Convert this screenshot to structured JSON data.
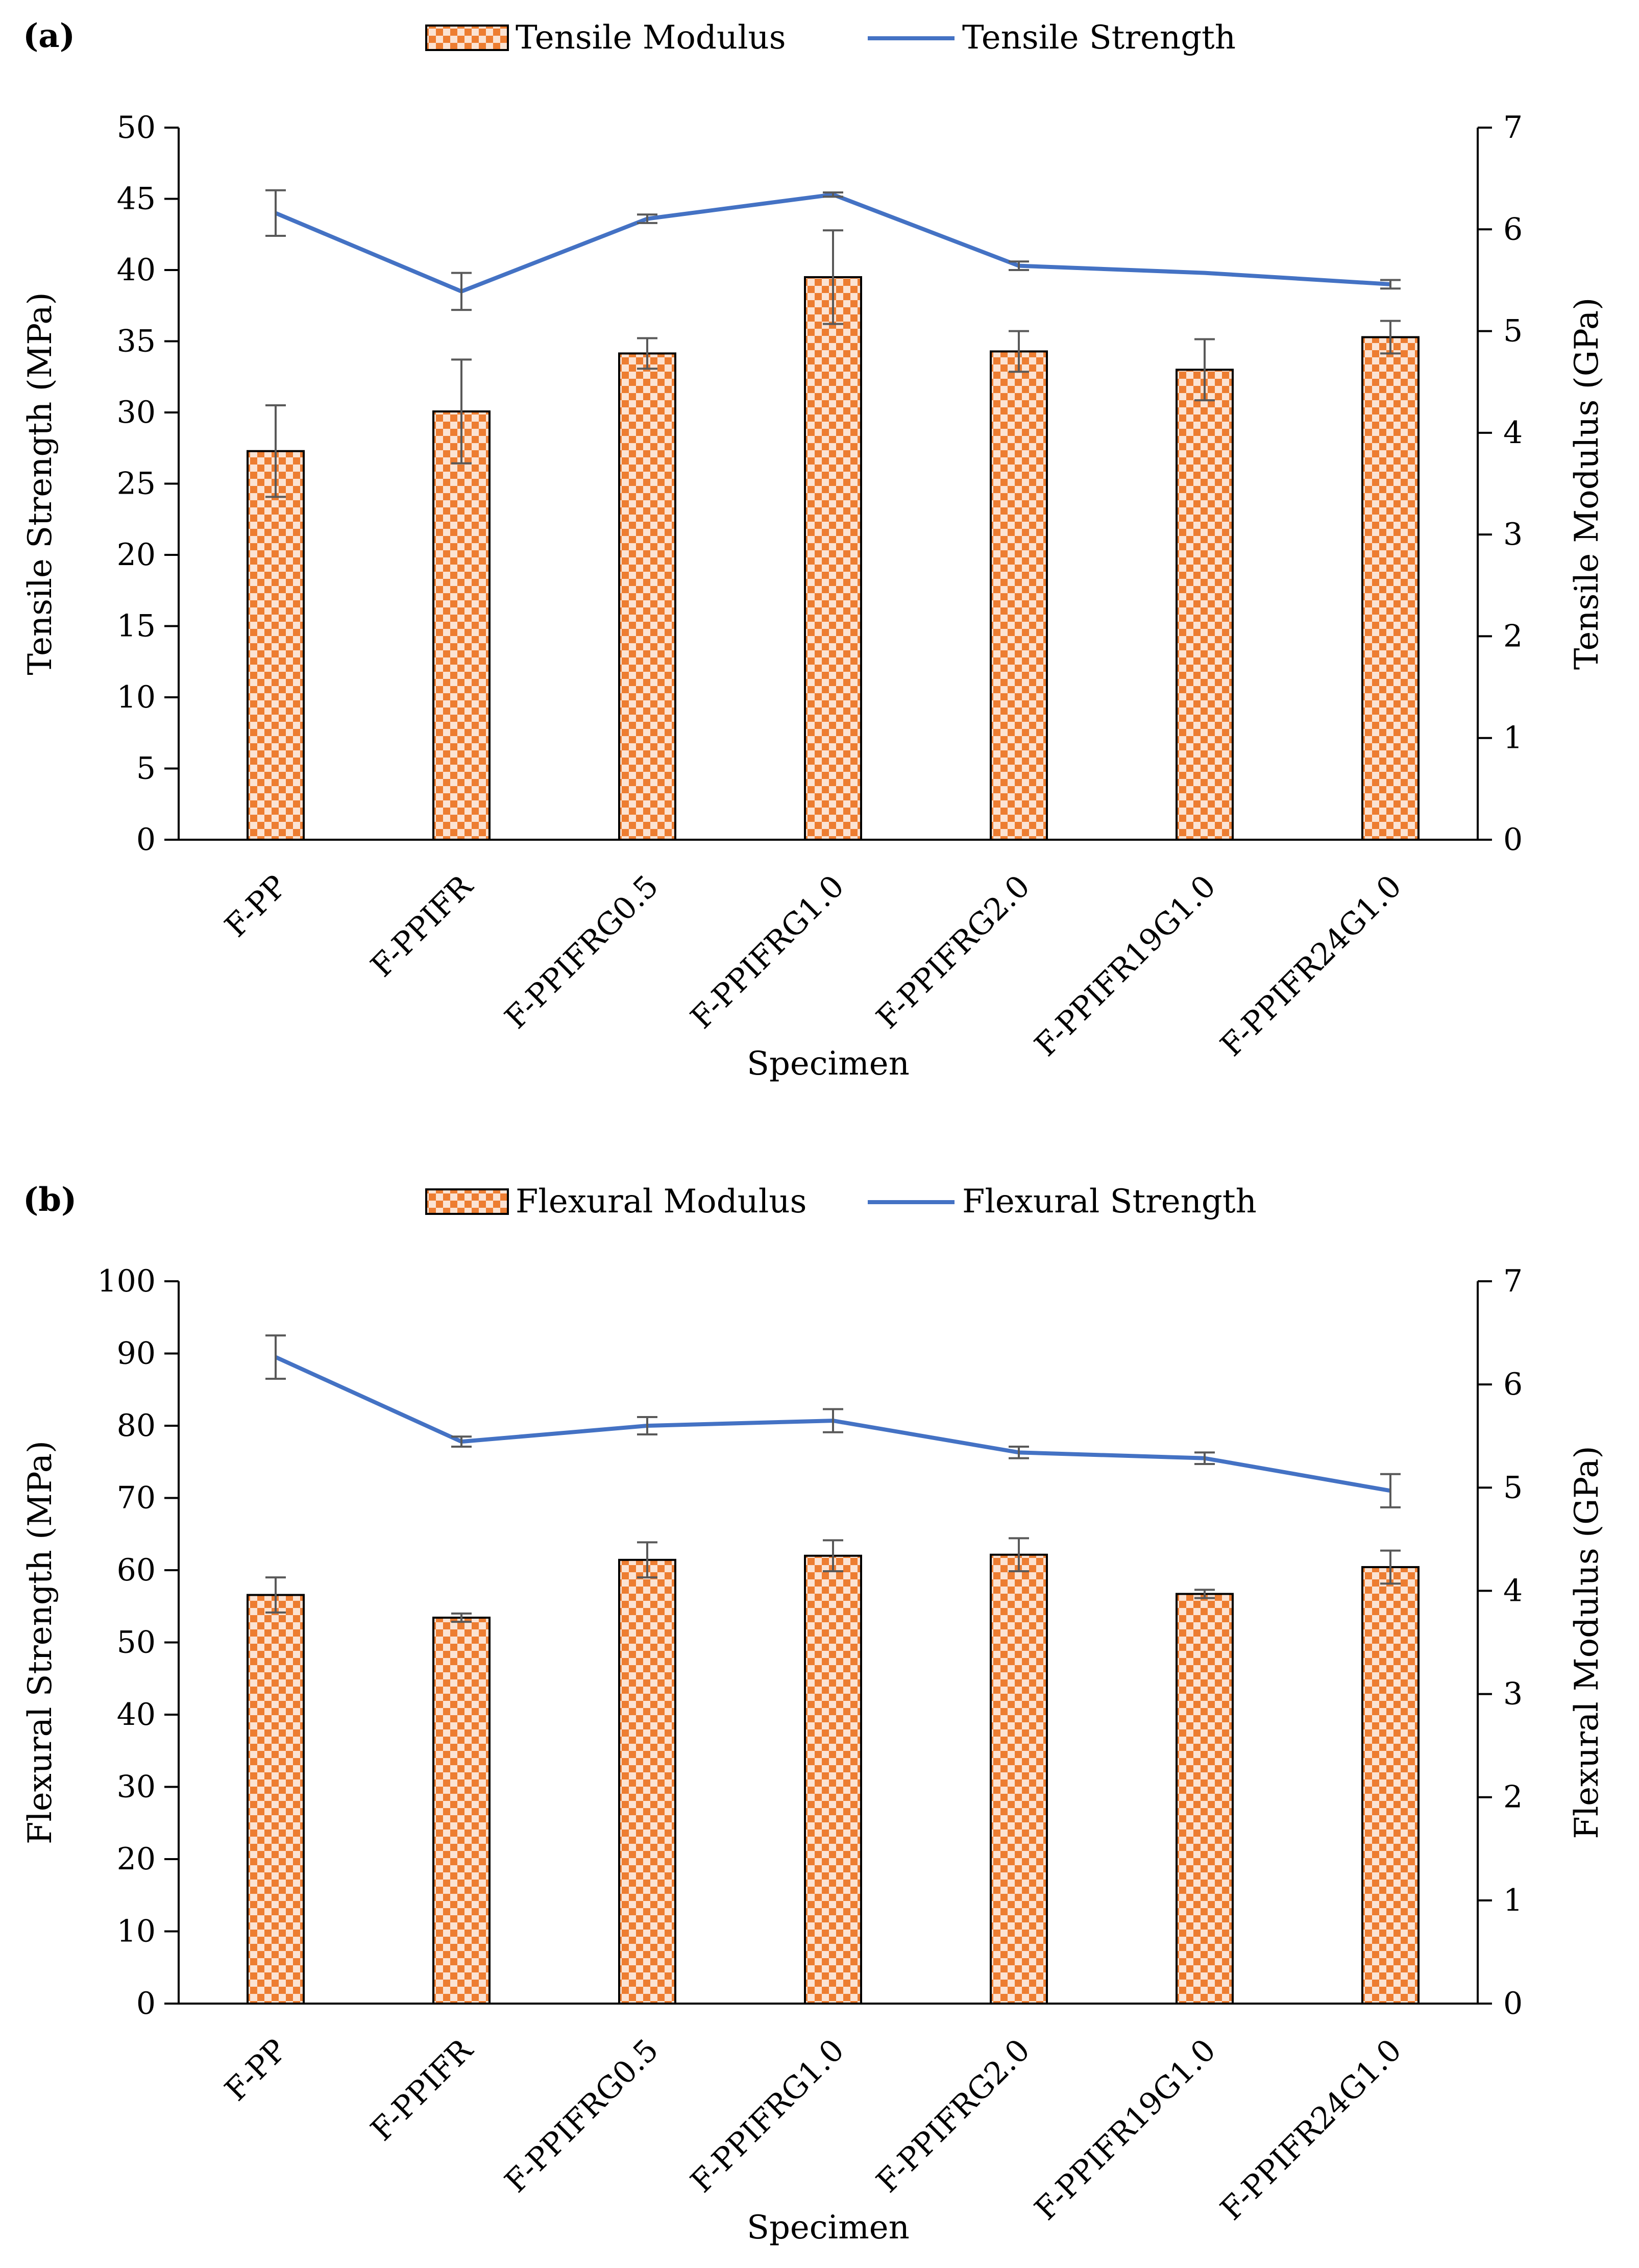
{
  "chart_data": [
    {
      "type": "bar",
      "panel_label": "(a)",
      "categories": [
        "F-PP",
        "F-PPIFR",
        "F-PPIFRG0.5",
        "F-PPIFRG1.0",
        "F-PPIFRG2.0",
        "F-PPIFR19G1.0",
        "F-PPIFR24G1.0"
      ],
      "xlabel": "Specimen",
      "ylabel": "Tensile Strength (MPa)",
      "y2label": "Tensile Modulus (GPa)",
      "ylim": [
        0,
        50
      ],
      "y2lim": [
        0,
        7
      ],
      "yticks": [
        "0",
        "5",
        "10",
        "15",
        "20",
        "25",
        "30",
        "35",
        "40",
        "45",
        "50"
      ],
      "y2ticks": [
        "0",
        "1",
        "2",
        "3",
        "4",
        "5",
        "6",
        "7"
      ],
      "legend_position": "top-center",
      "series": [
        {
          "name": "Tensile Modulus",
          "type": "bar",
          "axis": "right",
          "color": "#ED7D31",
          "values": [
            3.82,
            4.21,
            4.78,
            5.53,
            4.8,
            4.62,
            4.94
          ],
          "errors": [
            0.45,
            0.51,
            0.15,
            0.46,
            0.2,
            0.3,
            0.16
          ]
        },
        {
          "name": "Tensile Strength",
          "type": "line",
          "axis": "left",
          "color": "#4472C4",
          "values": [
            44.0,
            38.5,
            43.6,
            45.3,
            40.3,
            39.8,
            39.0
          ],
          "errors": [
            1.6,
            1.3,
            0.3,
            0.15,
            0.3,
            0.0,
            0.3
          ]
        }
      ]
    },
    {
      "type": "bar",
      "panel_label": "(b)",
      "categories": [
        "F-PP",
        "F-PPIFR",
        "F-PPIFRG0.5",
        "F-PPIFRG1.0",
        "F-PPIFRG2.0",
        "F-PPIFR19G1.0",
        "F-PPIFR24G1.0"
      ],
      "xlabel": "Specimen",
      "ylabel": "Flexural Strength (MPa)",
      "y2label": "Flexural Modulus (GPa)",
      "ylim": [
        0,
        100
      ],
      "y2lim": [
        0,
        7
      ],
      "yticks": [
        "0",
        "10",
        "20",
        "30",
        "40",
        "50",
        "60",
        "70",
        "80",
        "90",
        "100"
      ],
      "y2ticks": [
        "0",
        "1",
        "2",
        "3",
        "4",
        "5",
        "6",
        "7"
      ],
      "legend_position": "top-center",
      "series": [
        {
          "name": "Flexural Modulus",
          "type": "bar",
          "axis": "right",
          "color": "#ED7D31",
          "values": [
            3.96,
            3.74,
            4.3,
            4.34,
            4.35,
            3.97,
            4.23
          ],
          "errors": [
            0.17,
            0.04,
            0.17,
            0.15,
            0.16,
            0.04,
            0.16
          ]
        },
        {
          "name": "Flexural Strength",
          "type": "line",
          "axis": "left",
          "color": "#4472C4",
          "values": [
            89.5,
            77.8,
            80.0,
            80.7,
            76.3,
            75.5,
            71.0
          ],
          "errors": [
            3.0,
            0.7,
            1.2,
            1.6,
            0.8,
            0.8,
            2.3
          ]
        }
      ]
    }
  ]
}
